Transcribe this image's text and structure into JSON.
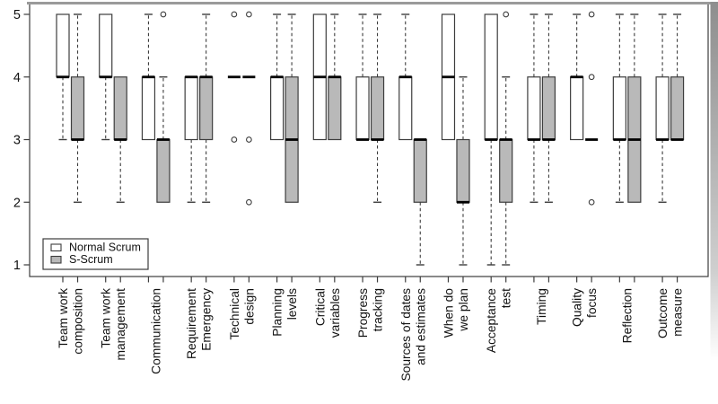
{
  "chart_data": {
    "type": "boxplot",
    "title": "",
    "xlabel": "",
    "ylabel": "",
    "ylim": [
      1,
      5
    ],
    "yticks": [
      1,
      2,
      3,
      4,
      5
    ],
    "grid": false,
    "legend": {
      "position": "bottom-left",
      "items": [
        {
          "label": "Normal Scrum",
          "fill": "#ffffff"
        },
        {
          "label": "S-Scrum",
          "fill": "#b9b9b9"
        }
      ]
    },
    "style": {
      "box_stroke": "#3d3d3d",
      "median_color": "#000000",
      "whisker_color": "#3d3d3d",
      "axis_color": "#3d3d3d",
      "outlier_stroke": "#3d3d3d",
      "frame_shadow": "#9a9a9a"
    },
    "series_names": [
      "Normal Scrum",
      "S-Scrum"
    ],
    "groups": [
      {
        "category": "Team work composition",
        "lines": [
          "Team work",
          "composition"
        ],
        "boxes": [
          {
            "low": 3,
            "q1": 4,
            "median": 4,
            "q3": 5,
            "high": 5,
            "outliers": []
          },
          {
            "low": 2,
            "q1": 3,
            "median": 3,
            "q3": 4,
            "high": 5,
            "outliers": []
          }
        ]
      },
      {
        "category": "Team work management",
        "lines": [
          "Team work",
          "management"
        ],
        "boxes": [
          {
            "low": 3,
            "q1": 4,
            "median": 4,
            "q3": 5,
            "high": 5,
            "outliers": []
          },
          {
            "low": 2,
            "q1": 3,
            "median": 3,
            "q3": 4,
            "high": 4,
            "outliers": []
          }
        ]
      },
      {
        "category": "Communication",
        "lines": [
          "Communication"
        ],
        "boxes": [
          {
            "low": 3,
            "q1": 3,
            "median": 4,
            "q3": 4,
            "high": 5,
            "outliers": []
          },
          {
            "low": 2,
            "q1": 2,
            "median": 3,
            "q3": 3,
            "high": 4,
            "outliers": [
              5
            ]
          }
        ]
      },
      {
        "category": "Requirement Emergency",
        "lines": [
          "Requirement",
          "Emergency"
        ],
        "boxes": [
          {
            "low": 2,
            "q1": 3,
            "median": 4,
            "q3": 4,
            "high": 4,
            "outliers": []
          },
          {
            "low": 2,
            "q1": 3,
            "median": 4,
            "q3": 4,
            "high": 5,
            "outliers": []
          }
        ]
      },
      {
        "category": "Technical design",
        "lines": [
          "Technical",
          "design"
        ],
        "boxes": [
          {
            "low": 4,
            "q1": 4,
            "median": 4,
            "q3": 4,
            "high": 4,
            "outliers": [
              5,
              3
            ]
          },
          {
            "low": 4,
            "q1": 4,
            "median": 4,
            "q3": 4,
            "high": 4,
            "outliers": [
              5,
              3,
              2
            ]
          }
        ]
      },
      {
        "category": "Planning levels",
        "lines": [
          "Planning",
          "levels"
        ],
        "boxes": [
          {
            "low": 3,
            "q1": 3,
            "median": 4,
            "q3": 4,
            "high": 5,
            "outliers": []
          },
          {
            "low": 2,
            "q1": 2,
            "median": 3,
            "q3": 4,
            "high": 5,
            "outliers": []
          }
        ]
      },
      {
        "category": "Critical variables",
        "lines": [
          "Critical",
          "variables"
        ],
        "boxes": [
          {
            "low": 3,
            "q1": 3,
            "median": 4,
            "q3": 5,
            "high": 5,
            "outliers": []
          },
          {
            "low": 3,
            "q1": 3,
            "median": 4,
            "q3": 4,
            "high": 5,
            "outliers": []
          }
        ]
      },
      {
        "category": "Progress tracking",
        "lines": [
          "Progress",
          "tracking"
        ],
        "boxes": [
          {
            "low": 3,
            "q1": 3,
            "median": 3,
            "q3": 4,
            "high": 5,
            "outliers": []
          },
          {
            "low": 2,
            "q1": 3,
            "median": 3,
            "q3": 4,
            "high": 5,
            "outliers": []
          }
        ]
      },
      {
        "category": "Sources of dates and estimates",
        "lines": [
          "Sources of dates",
          "and estimates"
        ],
        "boxes": [
          {
            "low": 3,
            "q1": 3,
            "median": 4,
            "q3": 4,
            "high": 5,
            "outliers": []
          },
          {
            "low": 1,
            "q1": 2,
            "median": 3,
            "q3": 3,
            "high": 3,
            "outliers": []
          }
        ]
      },
      {
        "category": "When do we plan",
        "lines": [
          "When do",
          "we plan"
        ],
        "boxes": [
          {
            "low": 3,
            "q1": 3,
            "median": 4,
            "q3": 5,
            "high": 5,
            "outliers": []
          },
          {
            "low": 1,
            "q1": 2,
            "median": 2,
            "q3": 3,
            "high": 4,
            "outliers": []
          }
        ]
      },
      {
        "category": "Acceptance test",
        "lines": [
          "Acceptance",
          "test"
        ],
        "boxes": [
          {
            "low": 1,
            "q1": 3,
            "median": 3,
            "q3": 5,
            "high": 5,
            "outliers": []
          },
          {
            "low": 1,
            "q1": 2,
            "median": 3,
            "q3": 3,
            "high": 4,
            "outliers": [
              5
            ]
          }
        ]
      },
      {
        "category": "Timing",
        "lines": [
          "Timing"
        ],
        "boxes": [
          {
            "low": 2,
            "q1": 3,
            "median": 3,
            "q3": 4,
            "high": 5,
            "outliers": []
          },
          {
            "low": 2,
            "q1": 3,
            "median": 3,
            "q3": 4,
            "high": 5,
            "outliers": []
          }
        ]
      },
      {
        "category": "Quality focus",
        "lines": [
          "Quality",
          "focus"
        ],
        "boxes": [
          {
            "low": 3,
            "q1": 3,
            "median": 4,
            "q3": 4,
            "high": 5,
            "outliers": []
          },
          {
            "low": 3,
            "q1": 3,
            "median": 3,
            "q3": 3,
            "high": 3,
            "outliers": [
              5,
              4,
              2
            ]
          }
        ]
      },
      {
        "category": "Reflection",
        "lines": [
          "Reflection"
        ],
        "boxes": [
          {
            "low": 2,
            "q1": 3,
            "median": 3,
            "q3": 4,
            "high": 5,
            "outliers": []
          },
          {
            "low": 2,
            "q1": 2,
            "median": 3,
            "q3": 4,
            "high": 5,
            "outliers": []
          }
        ]
      },
      {
        "category": "Outcome measure",
        "lines": [
          "Outcome",
          "measure"
        ],
        "boxes": [
          {
            "low": 2,
            "q1": 3,
            "median": 3,
            "q3": 4,
            "high": 5,
            "outliers": []
          },
          {
            "low": 3,
            "q1": 3,
            "median": 3,
            "q3": 4,
            "high": 5,
            "outliers": []
          }
        ]
      }
    ]
  }
}
